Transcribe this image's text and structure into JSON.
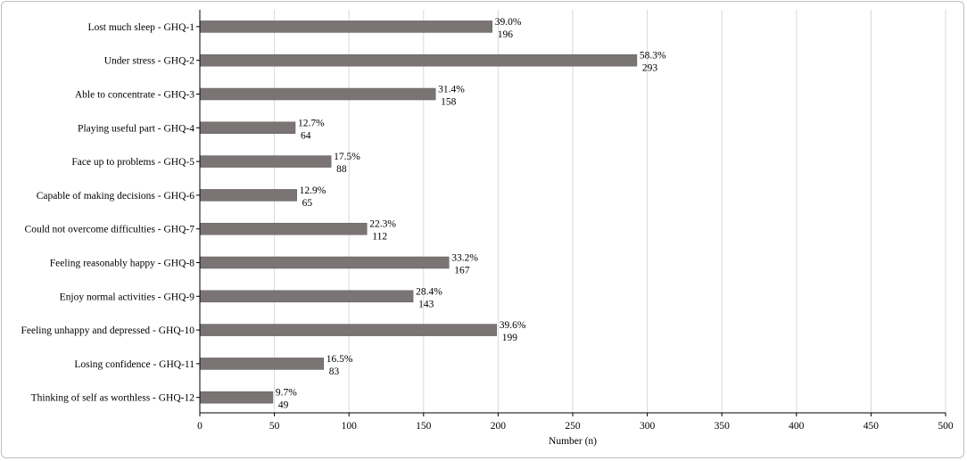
{
  "chart_data": {
    "type": "bar",
    "orientation": "horizontal",
    "categories": [
      "Lost much sleep - GHQ-1",
      "Under stress - GHQ-2",
      "Able to concentrate - GHQ-3",
      "Playing useful part - GHQ-4",
      "Face up to problems - GHQ-5",
      "Capable of making decisions - GHQ-6",
      "Could not overcome difficulties - GHQ-7",
      "Feeling reasonably happy - GHQ-8",
      "Enjoy normal activities - GHQ-9",
      "Feeling unhappy and depressed - GHQ-10",
      "Losing confidence - GHQ-11",
      "Thinking of self as worthless - GHQ-12"
    ],
    "values": [
      196,
      293,
      158,
      64,
      88,
      65,
      112,
      167,
      143,
      199,
      83,
      49
    ],
    "percent_labels": [
      "39.0%",
      "58.3%",
      "31.4%",
      "12.7%",
      "17.5%",
      "12.9%",
      "22.3%",
      "33.2%",
      "28.4%",
      "39.6%",
      "16.5%",
      "9.7%"
    ],
    "count_labels": [
      "196",
      "293",
      "158",
      "64",
      "88",
      "65",
      "112",
      "167",
      "143",
      "199",
      "83",
      "49"
    ],
    "xlabel": "Number (n)",
    "ylabel": "",
    "xlim": [
      0,
      500
    ],
    "xticks": [
      0,
      50,
      100,
      150,
      200,
      250,
      300,
      350,
      400,
      450,
      500
    ],
    "xtick_labels": [
      "0",
      "50",
      "100",
      "150",
      "200",
      "250",
      "300",
      "350",
      "400",
      "450",
      "500"
    ],
    "grid": true,
    "legend": "none",
    "colors": {
      "bar": "#7b7474",
      "bar_edge": "#5e5858",
      "grid": "#d9d9d9",
      "axis": "#000000"
    }
  }
}
